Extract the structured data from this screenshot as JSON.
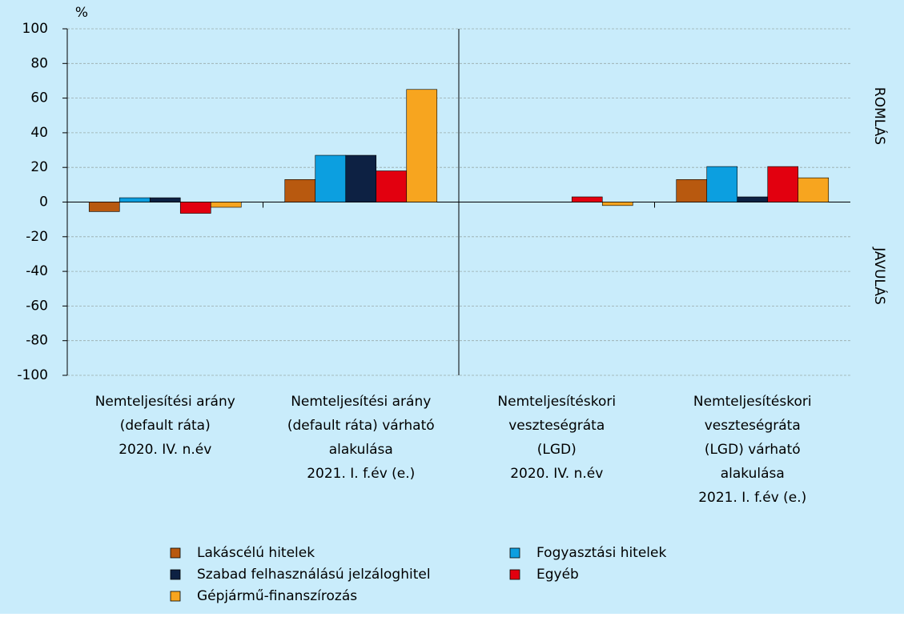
{
  "chart_data": {
    "type": "bar",
    "y_unit": "%",
    "annotations": [
      "ROMLÁS",
      "JAVULÁS"
    ],
    "categories": [
      [
        "Nemteljesítési arány",
        "(default ráta)",
        "2020. IV. n.év"
      ],
      [
        "Nemteljesítési arány",
        "(default ráta) várható",
        "alakulása",
        "2021. I. f.év (e.)"
      ],
      [
        "Nemteljesítéskori",
        "veszteségráta",
        "(LGD)",
        "2020. IV. n.év"
      ],
      [
        "Nemteljesítéskori",
        "veszteségráta",
        "(LGD) várható",
        "alakulása",
        "2021. I. f.év (e.)"
      ]
    ],
    "series": [
      {
        "name": "Lakáscélú hitelek",
        "color": "#b8590f",
        "values": [
          -5.5,
          13,
          0,
          13
        ]
      },
      {
        "name": "Fogyasztási hitelek",
        "color": "#0c9fe0",
        "values": [
          2.5,
          27,
          0,
          20.5
        ]
      },
      {
        "name": "Szabad felhasználású jelzáloghitel",
        "color": "#0d2143",
        "values": [
          2.5,
          27,
          0,
          3
        ]
      },
      {
        "name": "Egyéb",
        "color": "#e2000f",
        "values": [
          -6.5,
          18,
          3,
          20.5
        ]
      },
      {
        "name": "Gépjármű-finanszírozás",
        "color": "#f7a51f",
        "values": [
          -3,
          65,
          -2,
          14
        ]
      }
    ],
    "ylim": [
      -100,
      100
    ],
    "yticks": [
      -100,
      -80,
      -60,
      -40,
      -20,
      0,
      20,
      40,
      60,
      80,
      100
    ],
    "grid": true,
    "legend": "bottom",
    "background": "#c9ecfb"
  }
}
